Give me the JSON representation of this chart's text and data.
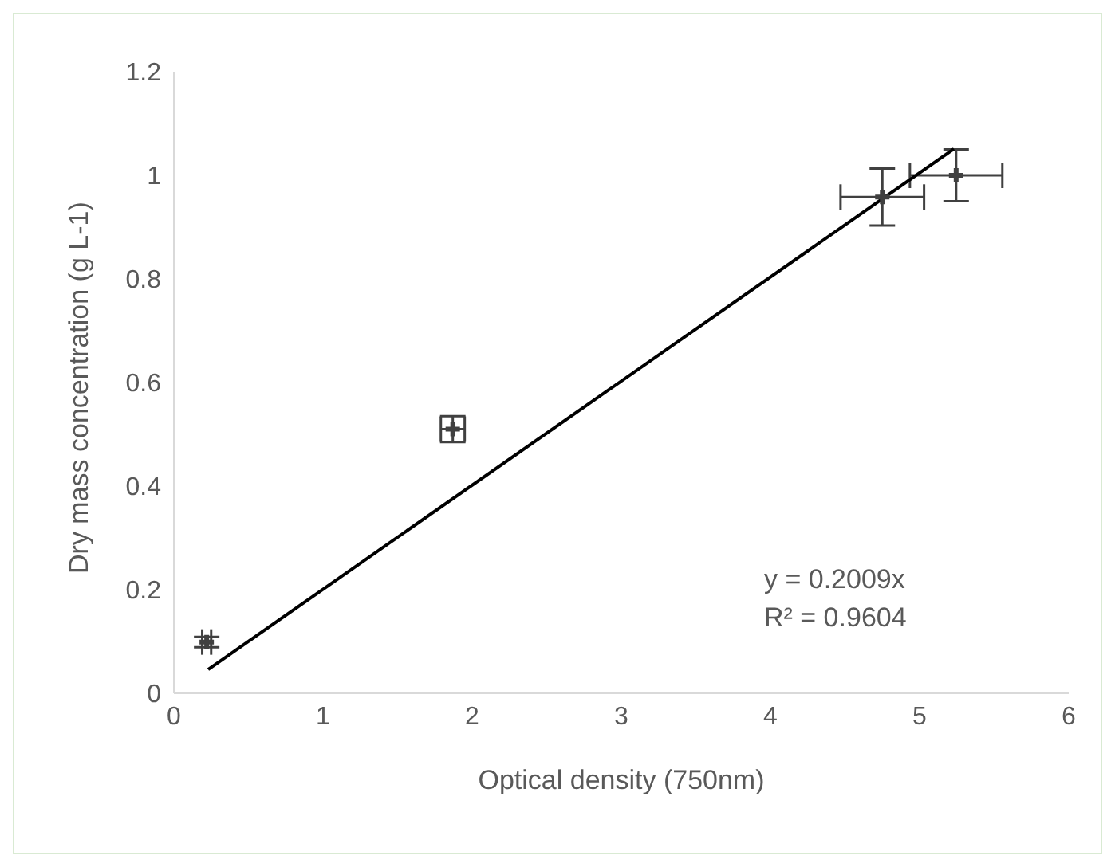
{
  "chart_data": {
    "type": "scatter",
    "xlabel": "Optical density (750nm)",
    "ylabel": "Dry mass concentration (g L-1)",
    "xlim": [
      0,
      6
    ],
    "xticks": [
      0,
      1,
      2,
      3,
      4,
      5,
      6
    ],
    "ylim": [
      0,
      1.2
    ],
    "yticks": [
      0,
      0.2,
      0.4,
      0.6,
      0.8,
      1,
      1.2
    ],
    "series": [
      {
        "marker": "cross",
        "color": "#404040",
        "x": [
          0.22,
          1.87,
          4.75,
          5.245
        ],
        "values": [
          0.099,
          0.51,
          0.958,
          1.0
        ],
        "errors": [
          0.01,
          0.025,
          0.055,
          0.05
        ],
        "xerrors": [
          0.03,
          0.08,
          0.28,
          0.31
        ]
      },
      {
        "type": "line",
        "color": "#000000",
        "x": [
          0.23,
          5.23
        ],
        "values": [
          0.046,
          1.051
        ]
      }
    ],
    "annotations": [
      "y = 0.2009x",
      "R² = 0.9604"
    ]
  }
}
